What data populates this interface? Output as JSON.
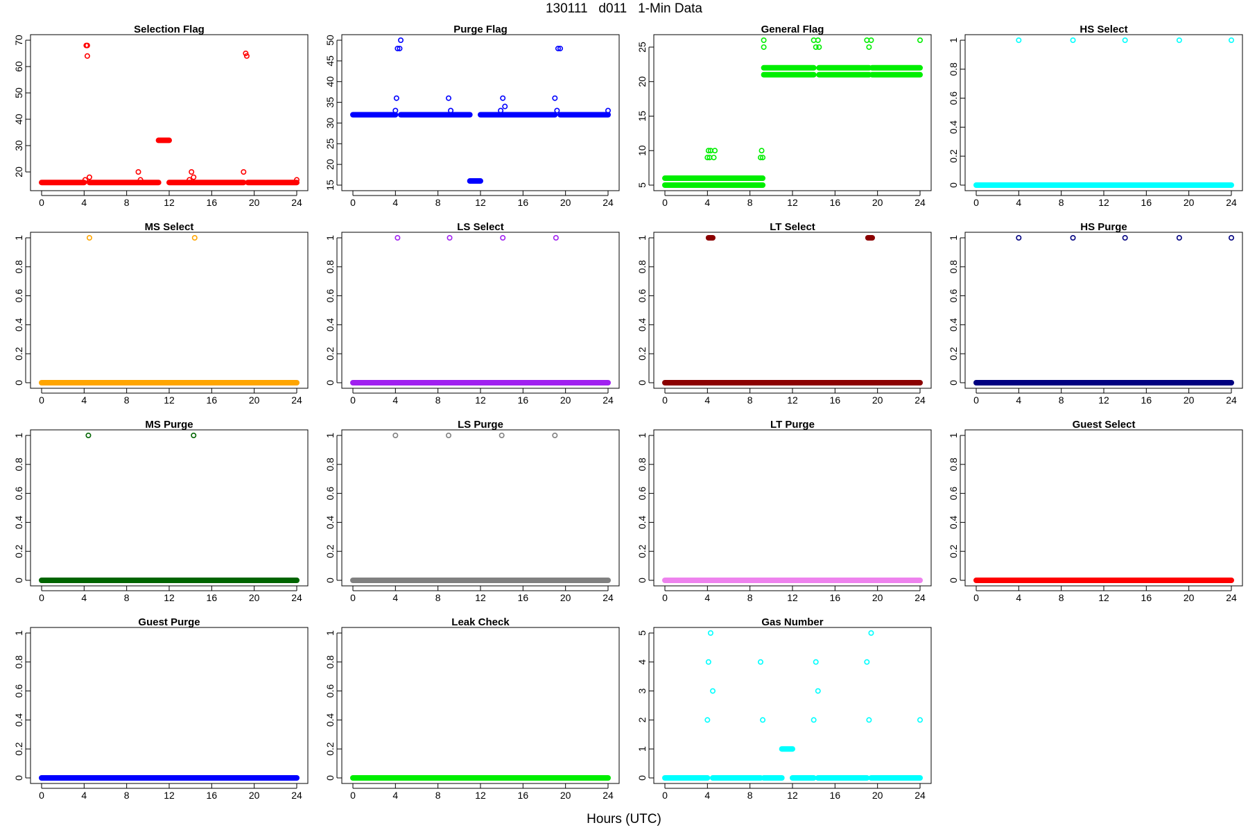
{
  "figure": {
    "title": "130111   d011   1-Min Data",
    "xlabel": "Hours (UTC)"
  },
  "chart_data": [
    {
      "type": "scatter",
      "title": "Selection Flag",
      "color": "#ff0000",
      "xlim": [
        0,
        24
      ],
      "ylim": [
        15,
        70
      ],
      "xticks": [
        0,
        4,
        8,
        12,
        16,
        20,
        24
      ],
      "yticks": [
        20,
        30,
        40,
        50,
        60,
        70
      ],
      "segments": [
        {
          "x0": 0,
          "x1": 4.0,
          "y": 16
        },
        {
          "x0": 4.5,
          "x1": 11.0,
          "y": 16
        },
        {
          "x0": 11.0,
          "x1": 12.0,
          "y": 32
        },
        {
          "x0": 12.0,
          "x1": 19.0,
          "y": 16
        },
        {
          "x0": 19.4,
          "x1": 24.0,
          "y": 16
        }
      ],
      "points": [
        {
          "x": 4.1,
          "y": 17
        },
        {
          "x": 4.2,
          "y": 68
        },
        {
          "x": 4.3,
          "y": 68
        },
        {
          "x": 4.3,
          "y": 64
        },
        {
          "x": 4.5,
          "y": 18
        },
        {
          "x": 9.1,
          "y": 20
        },
        {
          "x": 9.3,
          "y": 17
        },
        {
          "x": 13.9,
          "y": 17
        },
        {
          "x": 14.1,
          "y": 20
        },
        {
          "x": 14.3,
          "y": 18
        },
        {
          "x": 19.0,
          "y": 20
        },
        {
          "x": 19.2,
          "y": 65
        },
        {
          "x": 19.3,
          "y": 64
        },
        {
          "x": 24.0,
          "y": 17
        }
      ]
    },
    {
      "type": "scatter",
      "title": "Purge Flag",
      "color": "#0000ff",
      "xlim": [
        0,
        24
      ],
      "ylim": [
        15,
        50
      ],
      "xticks": [
        0,
        4,
        8,
        12,
        16,
        20,
        24
      ],
      "yticks": [
        15,
        20,
        25,
        30,
        35,
        40,
        45,
        50
      ],
      "segments": [
        {
          "x0": 0,
          "x1": 4.0,
          "y": 32
        },
        {
          "x0": 4.5,
          "x1": 11.0,
          "y": 32
        },
        {
          "x0": 11.0,
          "x1": 12.0,
          "y": 16
        },
        {
          "x0": 12.0,
          "x1": 19.0,
          "y": 32
        },
        {
          "x0": 19.5,
          "x1": 24.0,
          "y": 32
        }
      ],
      "points": [
        {
          "x": 4.0,
          "y": 33
        },
        {
          "x": 4.1,
          "y": 36
        },
        {
          "x": 4.2,
          "y": 48
        },
        {
          "x": 4.4,
          "y": 48
        },
        {
          "x": 4.5,
          "y": 50
        },
        {
          "x": 9.0,
          "y": 36
        },
        {
          "x": 9.2,
          "y": 33
        },
        {
          "x": 13.9,
          "y": 33
        },
        {
          "x": 14.1,
          "y": 36
        },
        {
          "x": 14.3,
          "y": 34
        },
        {
          "x": 19.0,
          "y": 36
        },
        {
          "x": 19.2,
          "y": 33
        },
        {
          "x": 19.3,
          "y": 48
        },
        {
          "x": 19.5,
          "y": 48
        },
        {
          "x": 24.0,
          "y": 33
        }
      ]
    },
    {
      "type": "scatter",
      "title": "General Flag",
      "color": "#00ee00",
      "xlim": [
        0,
        24
      ],
      "ylim": [
        5,
        26
      ],
      "xticks": [
        0,
        4,
        8,
        12,
        16,
        20,
        24
      ],
      "yticks": [
        5,
        10,
        15,
        20,
        25
      ],
      "segments": [
        {
          "x0": 0,
          "x1": 9.2,
          "y": 5
        },
        {
          "x0": 0,
          "x1": 9.2,
          "y": 6
        },
        {
          "x0": 9.3,
          "x1": 14.0,
          "y": 21
        },
        {
          "x0": 9.3,
          "x1": 14.0,
          "y": 22
        },
        {
          "x0": 14.5,
          "x1": 19.2,
          "y": 21
        },
        {
          "x0": 14.5,
          "x1": 19.2,
          "y": 22
        },
        {
          "x0": 19.5,
          "x1": 24.0,
          "y": 21
        },
        {
          "x0": 19.5,
          "x1": 24.0,
          "y": 22
        }
      ],
      "points": [
        {
          "x": 4.0,
          "y": 9
        },
        {
          "x": 4.1,
          "y": 10
        },
        {
          "x": 4.2,
          "y": 9
        },
        {
          "x": 4.3,
          "y": 10
        },
        {
          "x": 4.4,
          "y": 6
        },
        {
          "x": 4.6,
          "y": 9
        },
        {
          "x": 4.7,
          "y": 10
        },
        {
          "x": 9.0,
          "y": 9
        },
        {
          "x": 9.1,
          "y": 10
        },
        {
          "x": 9.2,
          "y": 9
        },
        {
          "x": 9.3,
          "y": 26
        },
        {
          "x": 9.3,
          "y": 25
        },
        {
          "x": 14.0,
          "y": 26
        },
        {
          "x": 14.2,
          "y": 25
        },
        {
          "x": 14.4,
          "y": 26
        },
        {
          "x": 14.5,
          "y": 25
        },
        {
          "x": 19.0,
          "y": 26
        },
        {
          "x": 19.2,
          "y": 25
        },
        {
          "x": 19.4,
          "y": 26
        },
        {
          "x": 24.0,
          "y": 26
        }
      ]
    },
    {
      "type": "scatter",
      "title": "HS Select",
      "color": "#00ffff",
      "xlim": [
        0,
        24
      ],
      "ylim": [
        0,
        1
      ],
      "xticks": [
        0,
        4,
        8,
        12,
        16,
        20,
        24
      ],
      "yticks": [
        0,
        0.2,
        0.4,
        0.6,
        0.8,
        1
      ],
      "segments": [
        {
          "x0": 0,
          "x1": 24,
          "y": 0
        }
      ],
      "points": [
        {
          "x": 4.0,
          "y": 1
        },
        {
          "x": 9.1,
          "y": 1
        },
        {
          "x": 14.0,
          "y": 1
        },
        {
          "x": 19.1,
          "y": 1
        },
        {
          "x": 24.0,
          "y": 1
        }
      ]
    },
    {
      "type": "scatter",
      "title": "MS Select",
      "color": "#ffa500",
      "xlim": [
        0,
        24
      ],
      "ylim": [
        0,
        1
      ],
      "xticks": [
        0,
        4,
        8,
        12,
        16,
        20,
        24
      ],
      "yticks": [
        0,
        0.2,
        0.4,
        0.6,
        0.8,
        1
      ],
      "segments": [
        {
          "x0": 0,
          "x1": 24,
          "y": 0
        }
      ],
      "points": [
        {
          "x": 4.5,
          "y": 1
        },
        {
          "x": 14.4,
          "y": 1
        }
      ]
    },
    {
      "type": "scatter",
      "title": "LS Select",
      "color": "#a020f0",
      "xlim": [
        0,
        24
      ],
      "ylim": [
        0,
        1
      ],
      "xticks": [
        0,
        4,
        8,
        12,
        16,
        20,
        24
      ],
      "yticks": [
        0,
        0.2,
        0.4,
        0.6,
        0.8,
        1
      ],
      "segments": [
        {
          "x0": 0,
          "x1": 24,
          "y": 0
        }
      ],
      "points": [
        {
          "x": 4.2,
          "y": 1
        },
        {
          "x": 9.1,
          "y": 1
        },
        {
          "x": 14.1,
          "y": 1
        },
        {
          "x": 19.1,
          "y": 1
        }
      ]
    },
    {
      "type": "scatter",
      "title": "LT Select",
      "color": "#8b0000",
      "xlim": [
        0,
        24
      ],
      "ylim": [
        0,
        1
      ],
      "xticks": [
        0,
        4,
        8,
        12,
        16,
        20,
        24
      ],
      "yticks": [
        0,
        0.2,
        0.4,
        0.6,
        0.8,
        1
      ],
      "segments": [
        {
          "x0": 0,
          "x1": 24,
          "y": 0
        },
        {
          "x0": 4.1,
          "x1": 4.5,
          "y": 1
        },
        {
          "x0": 19.1,
          "x1": 19.5,
          "y": 1
        }
      ],
      "points": []
    },
    {
      "type": "scatter",
      "title": "HS Purge",
      "color": "#000080",
      "xlim": [
        0,
        24
      ],
      "ylim": [
        0,
        1
      ],
      "xticks": [
        0,
        4,
        8,
        12,
        16,
        20,
        24
      ],
      "yticks": [
        0,
        0.2,
        0.4,
        0.6,
        0.8,
        1
      ],
      "segments": [
        {
          "x0": 0,
          "x1": 24,
          "y": 0
        }
      ],
      "points": [
        {
          "x": 4.0,
          "y": 1
        },
        {
          "x": 9.1,
          "y": 1
        },
        {
          "x": 14.0,
          "y": 1
        },
        {
          "x": 19.1,
          "y": 1
        },
        {
          "x": 24.0,
          "y": 1
        }
      ]
    },
    {
      "type": "scatter",
      "title": "MS Purge",
      "color": "#006400",
      "xlim": [
        0,
        24
      ],
      "ylim": [
        0,
        1
      ],
      "xticks": [
        0,
        4,
        8,
        12,
        16,
        20,
        24
      ],
      "yticks": [
        0,
        0.2,
        0.4,
        0.6,
        0.8,
        1
      ],
      "segments": [
        {
          "x0": 0,
          "x1": 24,
          "y": 0
        }
      ],
      "points": [
        {
          "x": 4.4,
          "y": 1
        },
        {
          "x": 14.3,
          "y": 1
        }
      ]
    },
    {
      "type": "scatter",
      "title": "LS Purge",
      "color": "#808080",
      "xlim": [
        0,
        24
      ],
      "ylim": [
        0,
        1
      ],
      "xticks": [
        0,
        4,
        8,
        12,
        16,
        20,
        24
      ],
      "yticks": [
        0,
        0.2,
        0.4,
        0.6,
        0.8,
        1
      ],
      "segments": [
        {
          "x0": 0,
          "x1": 24,
          "y": 0
        }
      ],
      "points": [
        {
          "x": 4.0,
          "y": 1
        },
        {
          "x": 9.0,
          "y": 1
        },
        {
          "x": 14.0,
          "y": 1
        },
        {
          "x": 19.0,
          "y": 1
        }
      ]
    },
    {
      "type": "scatter",
      "title": "LT Purge",
      "color": "#ee82ee",
      "xlim": [
        0,
        24
      ],
      "ylim": [
        0,
        1
      ],
      "xticks": [
        0,
        4,
        8,
        12,
        16,
        20,
        24
      ],
      "yticks": [
        0,
        0.2,
        0.4,
        0.6,
        0.8,
        1
      ],
      "segments": [
        {
          "x0": 0,
          "x1": 24,
          "y": 0
        }
      ],
      "points": []
    },
    {
      "type": "scatter",
      "title": "Guest Select",
      "color": "#ff0000",
      "xlim": [
        0,
        24
      ],
      "ylim": [
        0,
        1
      ],
      "xticks": [
        0,
        4,
        8,
        12,
        16,
        20,
        24
      ],
      "yticks": [
        0,
        0.2,
        0.4,
        0.6,
        0.8,
        1
      ],
      "segments": [
        {
          "x0": 0,
          "x1": 24,
          "y": 0
        }
      ],
      "points": []
    },
    {
      "type": "scatter",
      "title": "Guest Purge",
      "color": "#0000ff",
      "xlim": [
        0,
        24
      ],
      "ylim": [
        0,
        1
      ],
      "xticks": [
        0,
        4,
        8,
        12,
        16,
        20,
        24
      ],
      "yticks": [
        0,
        0.2,
        0.4,
        0.6,
        0.8,
        1
      ],
      "segments": [
        {
          "x0": 0,
          "x1": 24,
          "y": 0
        }
      ],
      "points": []
    },
    {
      "type": "scatter",
      "title": "Leak Check",
      "color": "#00ee00",
      "xlim": [
        0,
        24
      ],
      "ylim": [
        0,
        1
      ],
      "xticks": [
        0,
        4,
        8,
        12,
        16,
        20,
        24
      ],
      "yticks": [
        0,
        0.2,
        0.4,
        0.6,
        0.8,
        1
      ],
      "segments": [
        {
          "x0": 0,
          "x1": 24,
          "y": 0
        }
      ],
      "points": []
    },
    {
      "type": "scatter",
      "title": "Gas Number",
      "color": "#00ffff",
      "xlim": [
        0,
        24
      ],
      "ylim": [
        0,
        5
      ],
      "xticks": [
        0,
        4,
        8,
        12,
        16,
        20,
        24
      ],
      "yticks": [
        0,
        1,
        2,
        3,
        4,
        5
      ],
      "segments": [
        {
          "x0": 0,
          "x1": 4.0,
          "y": 0
        },
        {
          "x0": 4.5,
          "x1": 9.0,
          "y": 0
        },
        {
          "x0": 9.3,
          "x1": 11.0,
          "y": 0
        },
        {
          "x0": 11.0,
          "x1": 12.0,
          "y": 1
        },
        {
          "x0": 12.0,
          "x1": 14.0,
          "y": 0
        },
        {
          "x0": 14.4,
          "x1": 19.0,
          "y": 0
        },
        {
          "x0": 19.4,
          "x1": 24.0,
          "y": 0
        }
      ],
      "points": [
        {
          "x": 4.0,
          "y": 2
        },
        {
          "x": 4.1,
          "y": 4
        },
        {
          "x": 4.3,
          "y": 5
        },
        {
          "x": 4.5,
          "y": 3
        },
        {
          "x": 9.0,
          "y": 4
        },
        {
          "x": 9.2,
          "y": 2
        },
        {
          "x": 14.0,
          "y": 2
        },
        {
          "x": 14.2,
          "y": 4
        },
        {
          "x": 14.4,
          "y": 3
        },
        {
          "x": 19.0,
          "y": 4
        },
        {
          "x": 19.2,
          "y": 2
        },
        {
          "x": 19.4,
          "y": 5
        },
        {
          "x": 24.0,
          "y": 2
        }
      ]
    }
  ]
}
